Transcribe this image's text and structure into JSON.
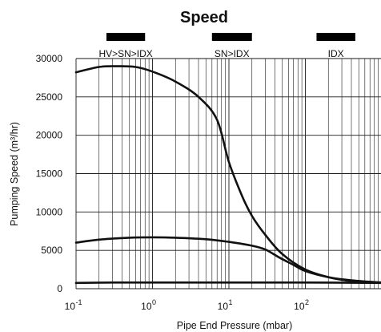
{
  "chart_data": {
    "type": "line",
    "title": "Speed",
    "xlabel": "Pipe End Pressure (mbar)",
    "ylabel": "Pumping Speed (m³/hr)",
    "x_scale": "log",
    "xlim": [
      0.1,
      1000
    ],
    "ylim": [
      0,
      30000
    ],
    "grid": true,
    "x_ticks": [
      {
        "base": "10",
        "exp": "-1",
        "value": 0.1
      },
      {
        "base": "10",
        "exp": "0",
        "value": 1
      },
      {
        "base": "10",
        "exp": "1",
        "value": 10
      },
      {
        "base": "10",
        "exp": "2",
        "value": 100
      }
    ],
    "y_ticks": [
      0,
      5000,
      10000,
      15000,
      20000,
      25000,
      30000
    ],
    "mode_bands": [
      {
        "label": "HV>SN>IDX",
        "x_start": 0.25,
        "x_end": 0.8
      },
      {
        "label": "SN>IDX",
        "x_start": 6,
        "x_end": 20
      },
      {
        "label": "IDX",
        "x_start": 140,
        "x_end": 450
      }
    ],
    "series": [
      {
        "x": [
          0.1,
          0.2,
          0.35,
          0.6,
          1,
          2,
          4,
          7,
          10,
          15,
          20,
          30,
          50,
          100,
          200,
          400,
          1000
        ],
        "y": [
          28200,
          28900,
          29000,
          28900,
          28300,
          27000,
          25000,
          22000,
          16500,
          12000,
          9500,
          7000,
          4500,
          2500,
          1500,
          1000,
          800
        ]
      },
      {
        "x": [
          0.1,
          0.2,
          0.5,
          1,
          2,
          5,
          10,
          20,
          30,
          45,
          70,
          100,
          200,
          400,
          1000
        ],
        "y": [
          6000,
          6400,
          6650,
          6700,
          6650,
          6450,
          6100,
          5600,
          5100,
          4100,
          3100,
          2300,
          1500,
          1100,
          800
        ]
      },
      {
        "x": [
          0.1,
          0.3,
          1,
          10,
          100,
          1000
        ],
        "y": [
          750,
          800,
          800,
          800,
          800,
          750
        ]
      }
    ]
  }
}
